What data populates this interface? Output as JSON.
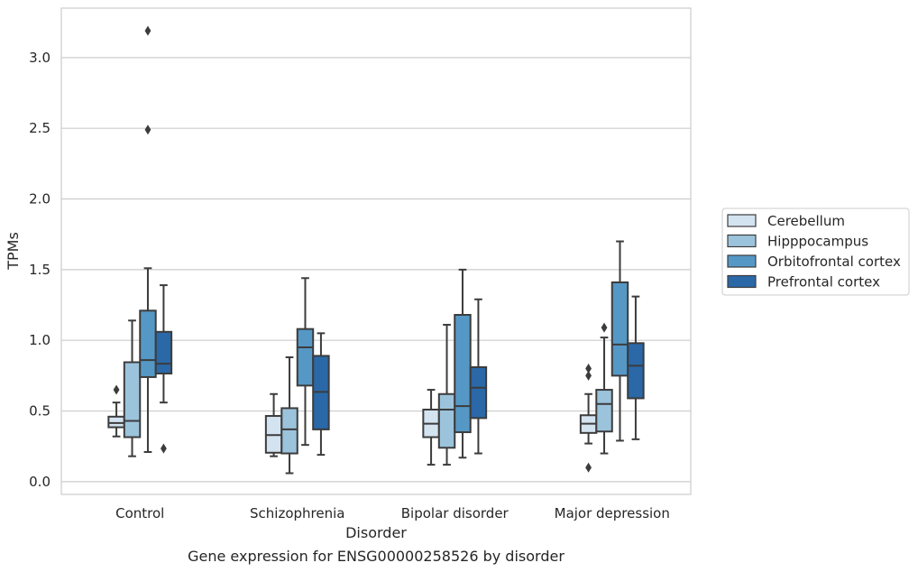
{
  "chart_data": {
    "type": "box",
    "title": "",
    "caption": "Gene expression for ENSG00000258526 by disorder",
    "xlabel": "Disorder",
    "ylabel": "TPMs",
    "ylim": [
      -0.09,
      3.35
    ],
    "yticks": [
      0.0,
      0.5,
      1.0,
      1.5,
      2.0,
      2.5,
      3.0
    ],
    "ytick_labels": [
      "0.0",
      "0.5",
      "1.0",
      "1.5",
      "2.0",
      "2.5",
      "3.0"
    ],
    "grid": "horizontal",
    "legend_position": "right",
    "categories": [
      "Control",
      "Schizophrenia",
      "Bipolar disorder",
      "Major depression"
    ],
    "series": [
      {
        "name": "Cerebellum",
        "color": "#d4e3f0",
        "boxes": [
          {
            "whisker_low": 0.32,
            "q1": 0.385,
            "median": 0.415,
            "q3": 0.46,
            "whisker_high": 0.56,
            "outliers": [
              0.65
            ]
          },
          {
            "whisker_low": 0.18,
            "q1": 0.205,
            "median": 0.33,
            "q3": 0.465,
            "whisker_high": 0.62,
            "outliers": []
          },
          {
            "whisker_low": 0.12,
            "q1": 0.315,
            "median": 0.41,
            "q3": 0.51,
            "whisker_high": 0.65,
            "outliers": []
          },
          {
            "whisker_low": 0.27,
            "q1": 0.345,
            "median": 0.41,
            "q3": 0.47,
            "whisker_high": 0.62,
            "outliers": [
              0.1,
              0.75,
              0.8
            ]
          }
        ]
      },
      {
        "name": "Hipppocampus",
        "color": "#9cc3dc",
        "boxes": [
          {
            "whisker_low": 0.18,
            "q1": 0.315,
            "median": 0.43,
            "q3": 0.845,
            "whisker_high": 1.14,
            "outliers": []
          },
          {
            "whisker_low": 0.06,
            "q1": 0.2,
            "median": 0.37,
            "q3": 0.52,
            "whisker_high": 0.88,
            "outliers": []
          },
          {
            "whisker_low": 0.12,
            "q1": 0.24,
            "median": 0.51,
            "q3": 0.62,
            "whisker_high": 1.11,
            "outliers": []
          },
          {
            "whisker_low": 0.2,
            "q1": 0.355,
            "median": 0.55,
            "q3": 0.65,
            "whisker_high": 1.02,
            "outliers": [
              1.09
            ]
          }
        ]
      },
      {
        "name": "Orbitofrontal cortex",
        "color": "#5598c6",
        "boxes": [
          {
            "whisker_low": 0.21,
            "q1": 0.74,
            "median": 0.86,
            "q3": 1.21,
            "whisker_high": 1.51,
            "outliers": [
              2.49,
              3.19
            ]
          },
          {
            "whisker_low": 0.26,
            "q1": 0.68,
            "median": 0.95,
            "q3": 1.08,
            "whisker_high": 1.44,
            "outliers": []
          },
          {
            "whisker_low": 0.17,
            "q1": 0.35,
            "median": 0.535,
            "q3": 1.18,
            "whisker_high": 1.5,
            "outliers": []
          },
          {
            "whisker_low": 0.29,
            "q1": 0.75,
            "median": 0.97,
            "q3": 1.41,
            "whisker_high": 1.7,
            "outliers": []
          }
        ]
      },
      {
        "name": "Prefrontal cortex",
        "color": "#2a68a8",
        "boxes": [
          {
            "whisker_low": 0.56,
            "q1": 0.765,
            "median": 0.835,
            "q3": 1.06,
            "whisker_high": 1.39,
            "outliers": [
              0.235
            ]
          },
          {
            "whisker_low": 0.19,
            "q1": 0.37,
            "median": 0.635,
            "q3": 0.89,
            "whisker_high": 1.05,
            "outliers": []
          },
          {
            "whisker_low": 0.2,
            "q1": 0.45,
            "median": 0.665,
            "q3": 0.81,
            "whisker_high": 1.29,
            "outliers": []
          },
          {
            "whisker_low": 0.3,
            "q1": 0.59,
            "median": 0.82,
            "q3": 0.98,
            "whisker_high": 1.31,
            "outliers": []
          }
        ]
      }
    ]
  }
}
